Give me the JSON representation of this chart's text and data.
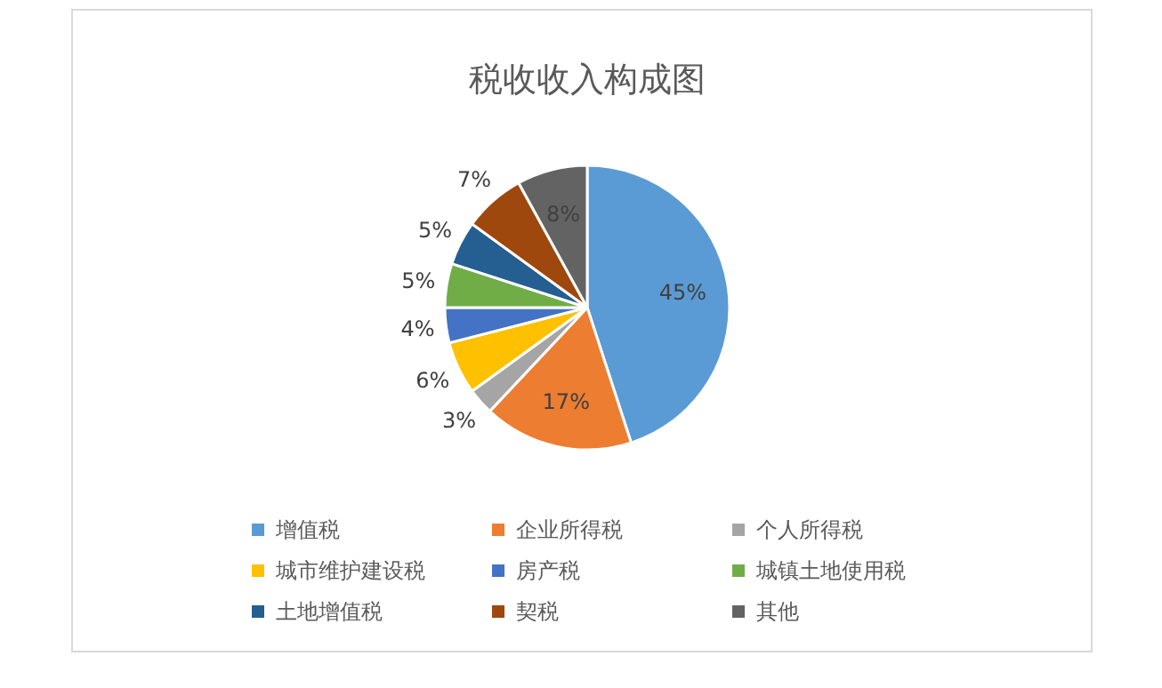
{
  "chart_data": {
    "type": "pie",
    "title": "税收收入构成图",
    "categories": [
      "增值税",
      "企业所得税",
      "个人所得税",
      "城市维护建设税",
      "房产税",
      "城镇土地使用税",
      "土地增值税",
      "契税",
      "其他"
    ],
    "values": [
      45,
      17,
      3,
      6,
      4,
      5,
      5,
      7,
      8
    ],
    "colors": [
      "#5b9bd5",
      "#ed7d31",
      "#a5a5a5",
      "#ffc000",
      "#4472c4",
      "#70ad47",
      "#255e91",
      "#9e480e",
      "#636363"
    ],
    "value_labels": [
      "45%",
      "17%",
      "3%",
      "6%",
      "4%",
      "5%",
      "5%",
      "7%",
      "8%"
    ],
    "legend": "bottom"
  }
}
